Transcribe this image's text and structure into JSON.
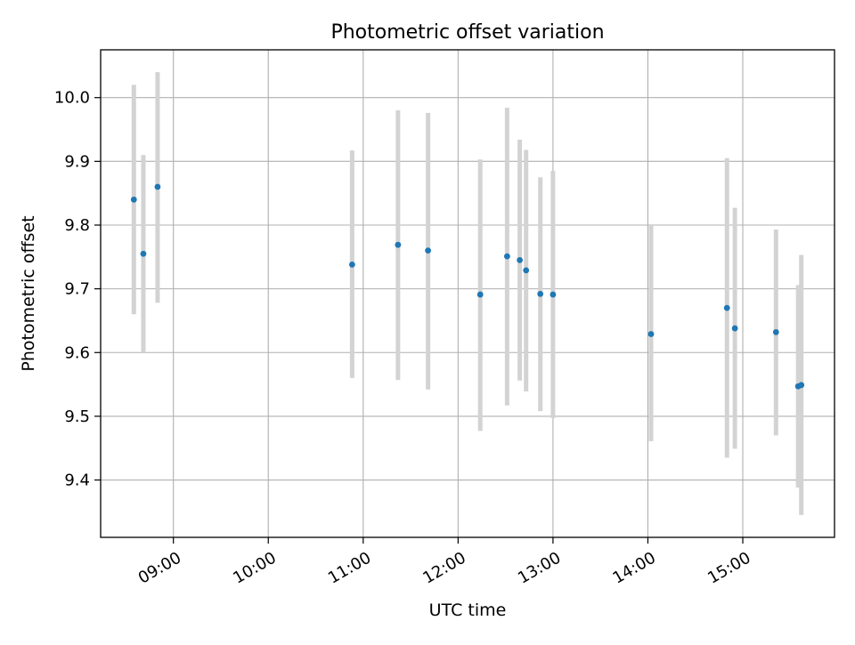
{
  "chart_data": {
    "type": "scatter",
    "title": "Photometric offset variation",
    "xlabel": "UTC time",
    "ylabel": "Photometric offset",
    "grid": true,
    "xlim": [
      "08:14",
      "15:58"
    ],
    "ylim": [
      9.31,
      10.075
    ],
    "x_ticks": [
      "09:00",
      "10:00",
      "11:00",
      "12:00",
      "13:00",
      "14:00",
      "15:00"
    ],
    "y_ticks": [
      "9.4",
      "9.5",
      "9.6",
      "9.7",
      "9.8",
      "9.9",
      "10.0"
    ],
    "marker_color": "#1f77b4",
    "errorbar_color": "#d3d3d3",
    "series": [
      {
        "name": "Photometric offset",
        "points": [
          {
            "t": "08:35",
            "y": 9.84,
            "lo": 9.66,
            "hi": 10.02
          },
          {
            "t": "08:41",
            "y": 9.755,
            "lo": 9.6,
            "hi": 9.91
          },
          {
            "t": "08:50",
            "y": 9.86,
            "lo": 9.678,
            "hi": 10.04
          },
          {
            "t": "10:53",
            "y": 9.738,
            "lo": 9.56,
            "hi": 9.917
          },
          {
            "t": "11:22",
            "y": 9.769,
            "lo": 9.557,
            "hi": 9.98
          },
          {
            "t": "11:41",
            "y": 9.76,
            "lo": 9.542,
            "hi": 9.976
          },
          {
            "t": "12:14",
            "y": 9.691,
            "lo": 9.477,
            "hi": 9.903
          },
          {
            "t": "12:31",
            "y": 9.751,
            "lo": 9.517,
            "hi": 9.984
          },
          {
            "t": "12:39",
            "y": 9.745,
            "lo": 9.556,
            "hi": 9.934
          },
          {
            "t": "12:43",
            "y": 9.729,
            "lo": 9.539,
            "hi": 9.918
          },
          {
            "t": "12:52",
            "y": 9.692,
            "lo": 9.508,
            "hi": 9.875
          },
          {
            "t": "13:00",
            "y": 9.691,
            "lo": 9.497,
            "hi": 9.885
          },
          {
            "t": "14:02",
            "y": 9.629,
            "lo": 9.461,
            "hi": 9.8
          },
          {
            "t": "14:50",
            "y": 9.67,
            "lo": 9.435,
            "hi": 9.905
          },
          {
            "t": "14:55",
            "y": 9.638,
            "lo": 9.449,
            "hi": 9.827
          },
          {
            "t": "15:21",
            "y": 9.632,
            "lo": 9.47,
            "hi": 9.793
          },
          {
            "t": "15:35",
            "y": 9.547,
            "lo": 9.388,
            "hi": 9.706
          },
          {
            "t": "15:37",
            "y": 9.549,
            "lo": 9.345,
            "hi": 9.753
          }
        ]
      }
    ]
  }
}
